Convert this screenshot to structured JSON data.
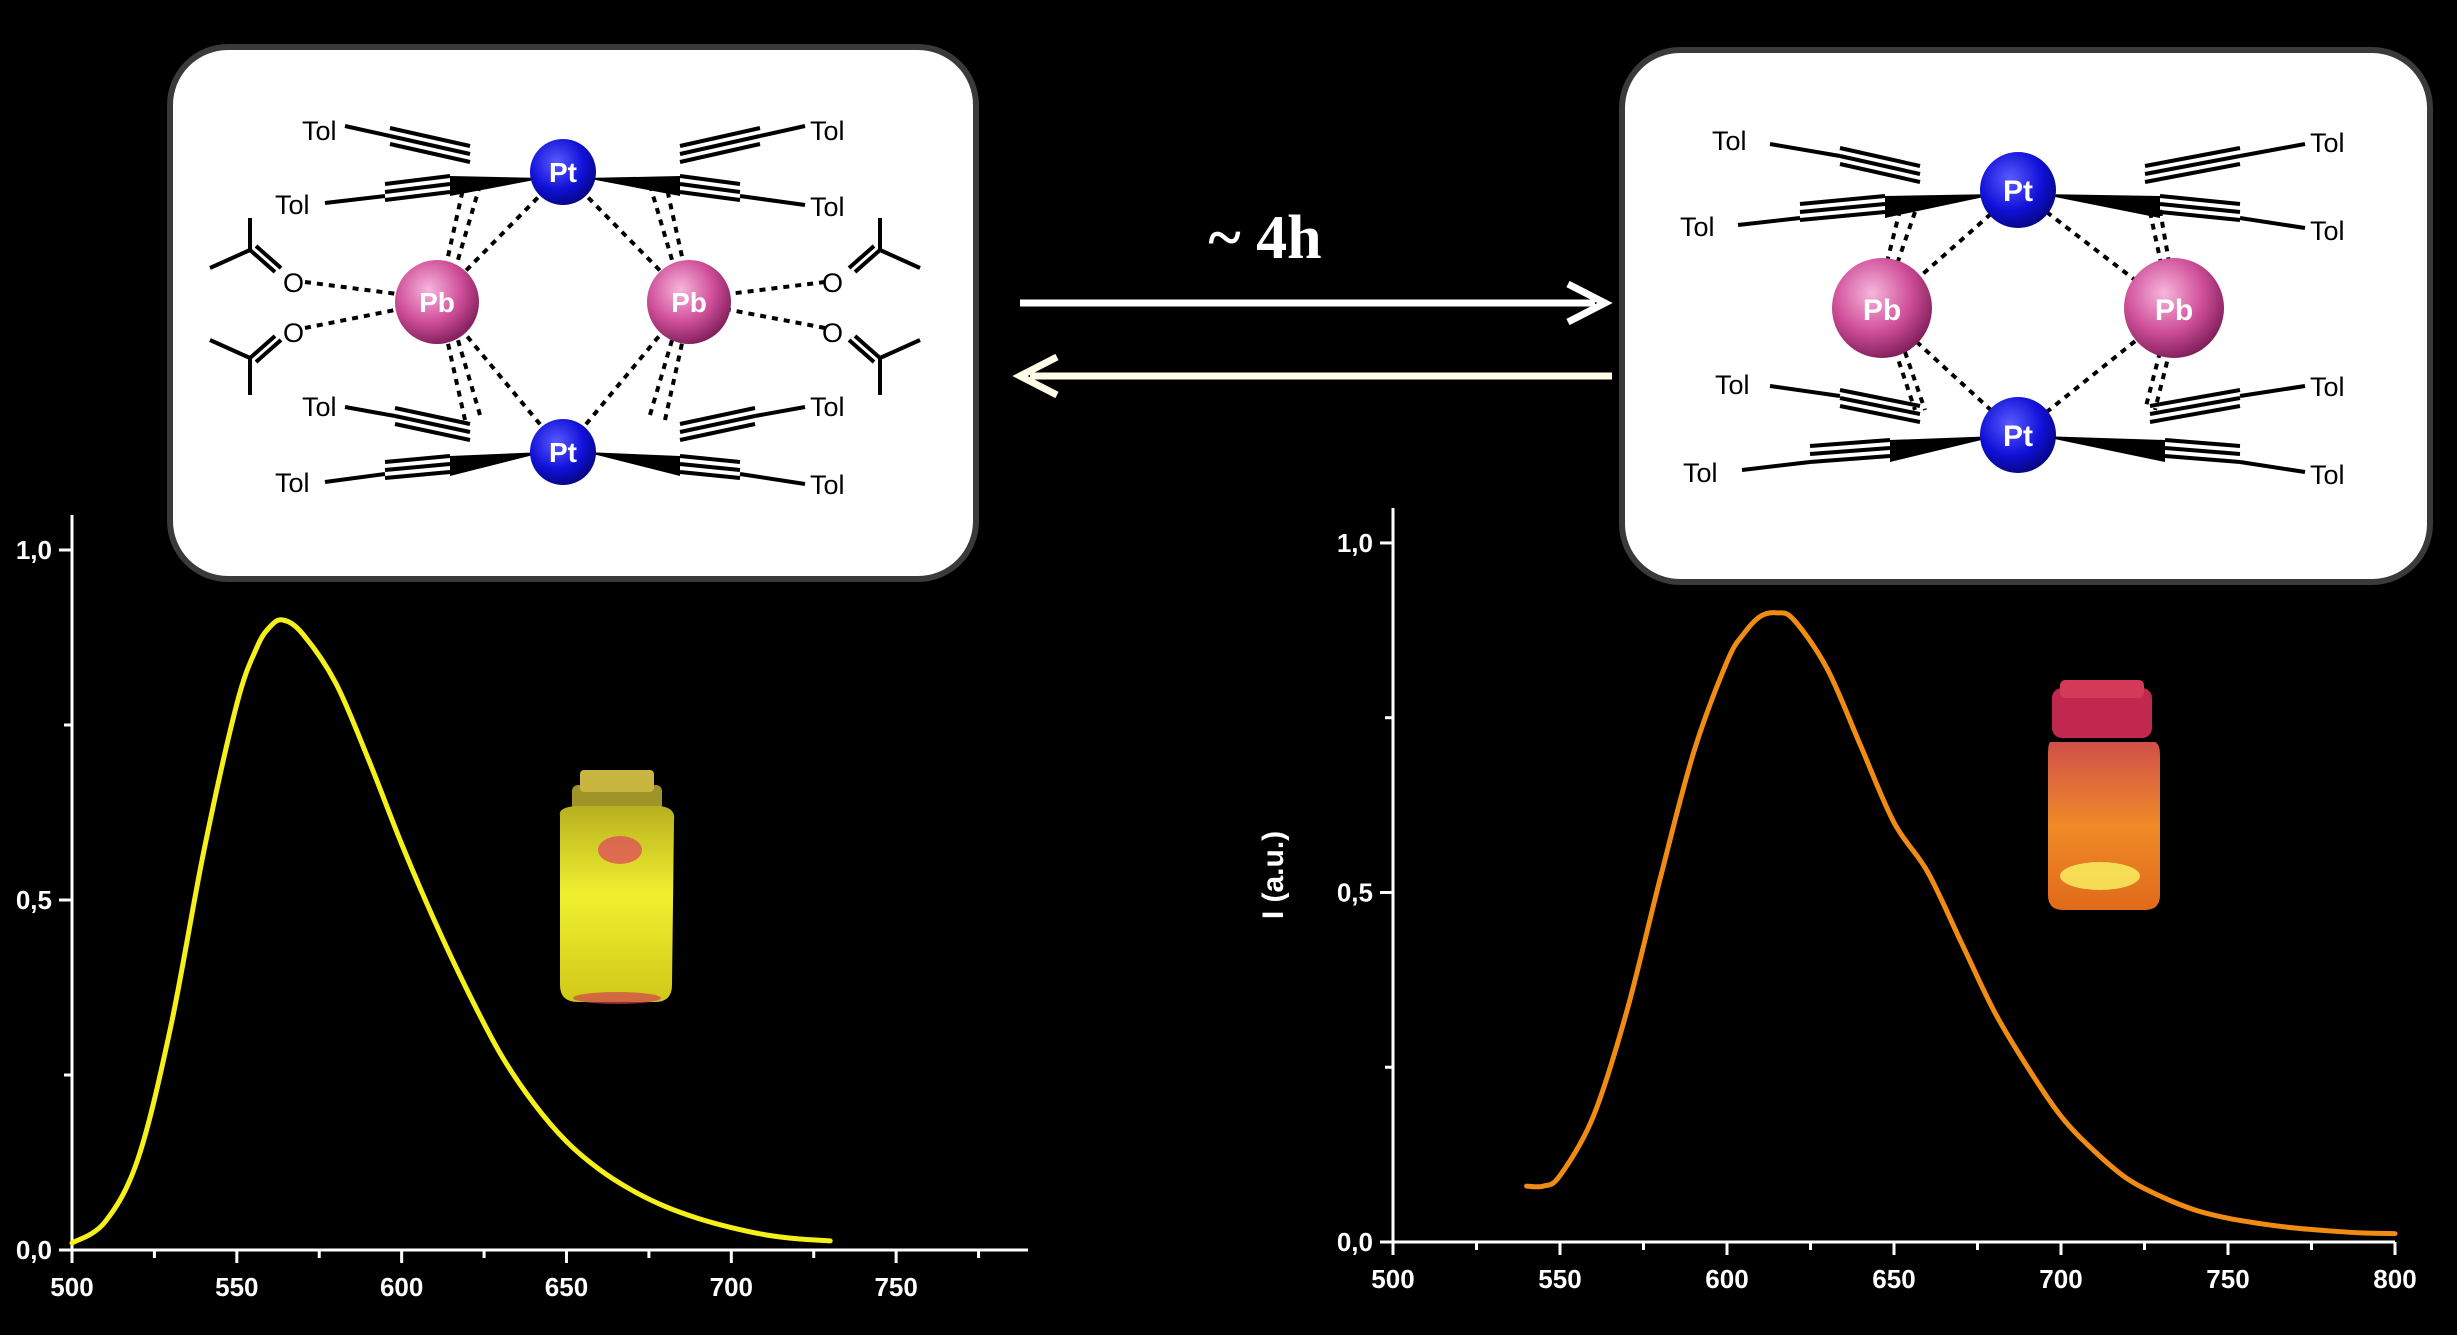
{
  "reaction": {
    "label": "~ 4h",
    "forward_arrow_color": "#ffffff",
    "reverse_arrow_color": "#fffde8"
  },
  "structures": [
    {
      "metal_labels": [
        "Pt",
        "Pt",
        "Pb",
        "Pb"
      ],
      "ligand_labels": [
        "Tol",
        "Tol",
        "Tol",
        "Tol",
        "Tol",
        "Tol",
        "Tol",
        "Tol"
      ],
      "oxygen_labels": [
        "O",
        "O",
        "O",
        "O"
      ]
    },
    {
      "metal_labels": [
        "Pt",
        "Pt",
        "Pb",
        "Pb"
      ],
      "ligand_labels": [
        "Tol",
        "Tol",
        "Tol",
        "Tol",
        "Tol",
        "Tol",
        "Tol",
        "Tol"
      ]
    }
  ],
  "colors": {
    "pt_atom": "#1010d8",
    "pb_atom": "#d0509a",
    "left_curve": "#f5f01a",
    "right_curve": "#f08c14",
    "frame_fill": "#ffffff",
    "frame_border": "#3a3a3a"
  },
  "photos": [
    {
      "icon": "vial-yellow-emission-icon",
      "color": "#e6e61e"
    },
    {
      "icon": "vial-orange-emission-icon",
      "color": "#f0821e"
    }
  ],
  "chart_data": [
    {
      "type": "line",
      "title": "",
      "xlabel": "",
      "ylabel": "",
      "xlim": [
        500,
        790
      ],
      "ylim": [
        0,
        1.05
      ],
      "x_ticks": [
        "500",
        "550",
        "600",
        "650",
        "700",
        "750"
      ],
      "y_ticks": [
        "0,0",
        "0,5",
        "1,0"
      ],
      "grid": false,
      "series": [
        {
          "x": [
            500,
            510,
            520,
            530,
            540,
            550,
            556,
            560,
            564,
            570,
            580,
            590,
            600,
            610,
            620,
            630,
            640,
            650,
            660,
            670,
            680,
            690,
            700,
            710,
            720,
            730
          ],
          "y": [
            0.01,
            0.04,
            0.13,
            0.32,
            0.57,
            0.78,
            0.86,
            0.89,
            0.9,
            0.88,
            0.81,
            0.7,
            0.58,
            0.47,
            0.37,
            0.28,
            0.21,
            0.155,
            0.115,
            0.085,
            0.062,
            0.045,
            0.032,
            0.022,
            0.016,
            0.013
          ]
        }
      ]
    },
    {
      "type": "line",
      "title": "",
      "xlabel": "",
      "ylabel": "I (a.u.)",
      "xlim": [
        500,
        800
      ],
      "ylim": [
        0,
        1.05
      ],
      "x_ticks": [
        "500",
        "550",
        "600",
        "650",
        "700",
        "750",
        "800"
      ],
      "y_ticks": [
        "0,0",
        "0,5",
        "1,0"
      ],
      "grid": false,
      "series": [
        {
          "x": [
            540,
            545,
            550,
            560,
            570,
            580,
            590,
            600,
            605,
            610,
            615,
            620,
            630,
            640,
            650,
            660,
            670,
            680,
            690,
            700,
            710,
            720,
            730,
            740,
            750,
            760,
            770,
            780,
            790,
            800
          ],
          "y": [
            0.08,
            0.08,
            0.095,
            0.18,
            0.33,
            0.52,
            0.7,
            0.83,
            0.87,
            0.895,
            0.9,
            0.89,
            0.82,
            0.71,
            0.6,
            0.53,
            0.43,
            0.33,
            0.25,
            0.18,
            0.13,
            0.09,
            0.065,
            0.046,
            0.034,
            0.026,
            0.02,
            0.016,
            0.013,
            0.012
          ]
        }
      ]
    }
  ]
}
